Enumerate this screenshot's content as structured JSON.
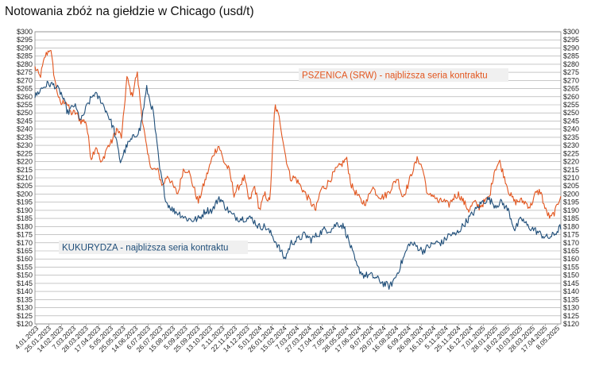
{
  "title": "Notowania zbóż na giełdzie w Chicago (usd/t)",
  "colors": {
    "wheat": "#e2561f",
    "corn": "#1f4e79",
    "grid": "#a6a6a6",
    "label_bg": "#f0f0f0"
  },
  "chart_data": {
    "type": "line",
    "title": "Notowania zbóż na giełdzie w Chicago (usd/t)",
    "ylim": [
      120,
      300
    ],
    "ystep": 5,
    "y_prefix": "$",
    "grid": true,
    "x_tick_labels": [
      "4.01.2023",
      "25.01.2023",
      "14.02.2023",
      "7.03.2023",
      "28.03.2023",
      "17.04.2023",
      "5.05.2023",
      "25.05.2023",
      "14.06.2023",
      "6.07.2023",
      "26.07.2023",
      "15.08.2023",
      "5.09.2023",
      "25.09.2023",
      "13.10.2023",
      "2.11.2023",
      "22.11.2023",
      "14.12.2023",
      "5.01.2024",
      "26.01.2024",
      "15.02.2024",
      "7.03.2024",
      "27.03.2024",
      "17.04.2024",
      "7.05.2024",
      "28.05.2024",
      "17.06.2024",
      "9.07.2024",
      "29.07.2024",
      "16.08.2024",
      "6.09.2024",
      "26.09.2024",
      "16.10.2024",
      "5.11.2024",
      "25.11.2024",
      "16.12.2024",
      "7.01.2025",
      "28.01.2025",
      "18.02.2025",
      "10.03.2025",
      "28.03.2025",
      "17.04.2025",
      "8.05.2025"
    ],
    "series": [
      {
        "name": "PSZENICA (SRW) - najbliższa seria kontraktu",
        "color": "#e2561f",
        "values": [
          278,
          272,
          285,
          290,
          268,
          255,
          258,
          250,
          250,
          245,
          245,
          222,
          230,
          218,
          228,
          232,
          240,
          235,
          272,
          260,
          275,
          247,
          225,
          215,
          215,
          205,
          212,
          205,
          200,
          215,
          215,
          205,
          195,
          205,
          215,
          225,
          230,
          220,
          215,
          200,
          205,
          210,
          195,
          205,
          190,
          200,
          195,
          255,
          245,
          225,
          210,
          210,
          205,
          200,
          195,
          190,
          203,
          205,
          210,
          215,
          218,
          222,
          205,
          200,
          195,
          195,
          205,
          200,
          198,
          200,
          205,
          210,
          198,
          205,
          215,
          222,
          215,
          198,
          200,
          195,
          196,
          193,
          198,
          200,
          195,
          190,
          195,
          192,
          195,
          198,
          215,
          220,
          210,
          200,
          195,
          196,
          195,
          192,
          200,
          202,
          190,
          185,
          190,
          200
        ],
        "x_start": 0,
        "x_end": 1
      },
      {
        "name": "KUKURYDZA - najbliższa seria kontraktu",
        "color": "#1f4e79",
        "values": [
          260,
          265,
          268,
          267,
          262,
          250,
          255,
          245,
          255,
          262,
          258,
          250,
          240,
          220,
          230,
          235,
          240,
          265,
          250,
          215,
          195,
          190,
          188,
          185,
          184,
          185,
          190,
          190,
          198,
          192,
          187,
          185,
          185,
          185,
          180,
          180,
          175,
          168,
          160,
          170,
          172,
          175,
          172,
          175,
          178,
          178,
          182,
          180,
          168,
          155,
          150,
          150,
          148,
          145,
          143,
          150,
          160,
          170,
          168,
          165,
          168,
          170,
          170,
          175,
          175,
          180,
          185,
          190,
          195,
          197,
          193,
          195,
          190,
          178,
          185,
          180,
          178,
          175,
          173,
          175,
          180
        ],
        "x_start": 0,
        "x_end": 1
      }
    ]
  }
}
